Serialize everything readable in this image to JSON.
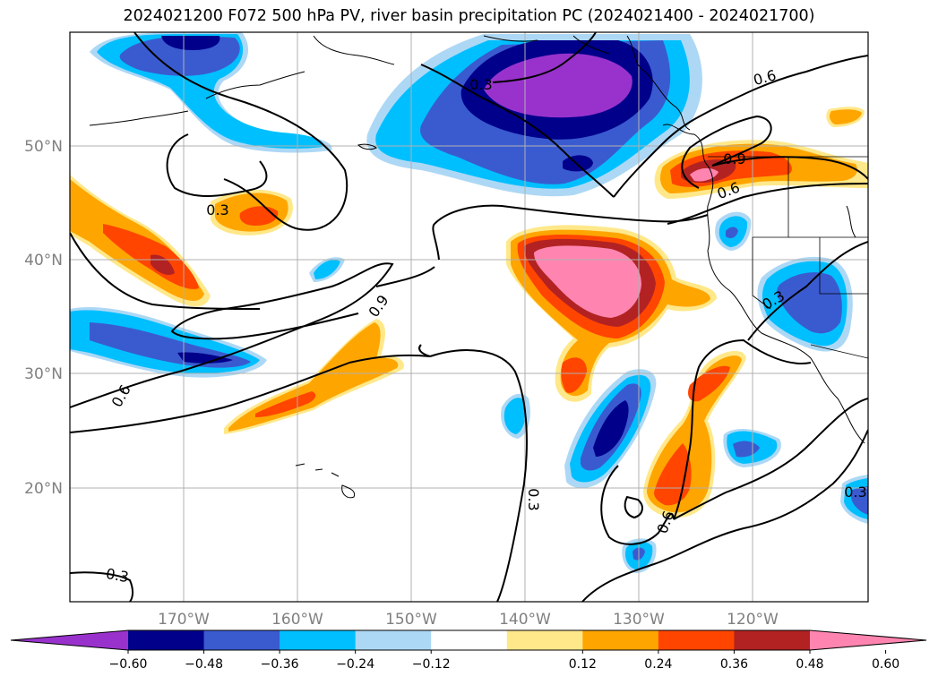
{
  "title": "2024021200 F072 500 hPa PV, river basin precipitation PC (2024021400 - 2024021700)",
  "map": {
    "lon_labels": [
      "170°W",
      "160°W",
      "150°W",
      "140°W",
      "130°W",
      "120°W"
    ],
    "lat_labels": [
      "50°N",
      "40°N",
      "30°N",
      "20°N"
    ],
    "contour_labels": [
      "0.3",
      "0.6",
      "0.6",
      "0.3",
      "0.9",
      "0.6",
      "0.3",
      "0.3",
      "0.3",
      "0.9",
      "0.6",
      "0.3"
    ]
  },
  "colorbar": {
    "ticks": [
      "−0.60",
      "−0.48",
      "−0.36",
      "−0.24",
      "−0.12",
      "0.12",
      "0.24",
      "0.36",
      "0.48",
      "0.60"
    ],
    "colors": [
      "#9932cc",
      "#00008b",
      "#3a5bd0",
      "#00bfff",
      "#add8f5",
      "#ffffff",
      "#ffe88a",
      "#ffa500",
      "#ff4500",
      "#b22222",
      "#ff85b0"
    ]
  }
}
